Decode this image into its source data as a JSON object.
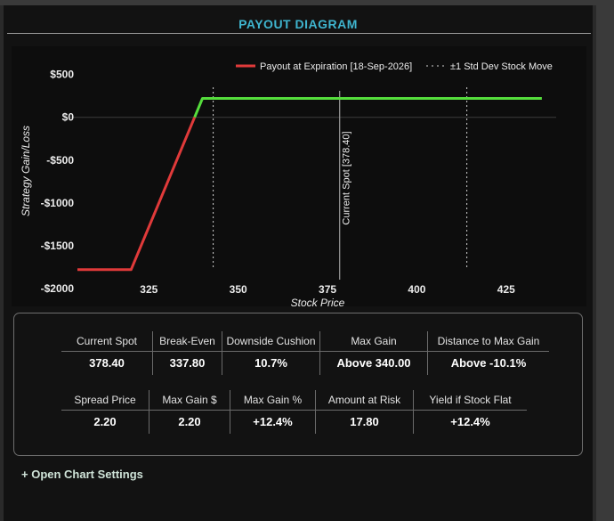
{
  "panel": {
    "title": "PAYOUT DIAGRAM"
  },
  "chart_data": {
    "type": "line",
    "xlabel": "Stock Price",
    "ylabel": "Strategy Gain/Loss",
    "xlim": [
      303,
      439
    ],
    "ylim": [
      -2000,
      600
    ],
    "x_ticks": [
      325,
      350,
      375,
      400,
      425
    ],
    "y_ticks": [
      500,
      0,
      -500,
      -1000,
      -1500,
      -2000
    ],
    "y_tick_labels": [
      "$500",
      "$0",
      "-$500",
      "-$1000",
      "-$1500",
      "-$2000"
    ],
    "series": [
      {
        "name": "Payout at Expiration [18-Sep-2026]",
        "x": [
          305,
          320,
          337.8,
          340,
          435
        ],
        "y": [
          -1780,
          -1780,
          0,
          220,
          220
        ],
        "loss_color": "#e03a3a",
        "gain_color": "#55dd3c"
      }
    ],
    "std_dev_legend": "±1 Std Dev Stock Move",
    "std_dev_lines": [
      343,
      414
    ],
    "spot": {
      "x": 378.4,
      "label": "Current Spot [378.40]"
    },
    "grid": false,
    "legend_position": "top-right"
  },
  "stats": {
    "row1": [
      {
        "label": "Current Spot",
        "value": "378.40"
      },
      {
        "label": "Break-Even",
        "value": "337.80"
      },
      {
        "label": "Downside Cushion",
        "value": "10.7%"
      },
      {
        "label": "Max Gain",
        "value": "Above 340.00"
      },
      {
        "label": "Distance to Max Gain",
        "value": "Above -10.1%"
      }
    ],
    "row2": [
      {
        "label": "Spread Price",
        "value": "2.20"
      },
      {
        "label": "Max Gain $",
        "value": "2.20"
      },
      {
        "label": "Max Gain %",
        "value": "+12.4%"
      },
      {
        "label": "Amount at Risk",
        "value": "17.80"
      },
      {
        "label": "Yield if Stock Flat",
        "value": "+12.4%"
      }
    ]
  },
  "settings_link": "+ Open Chart Settings"
}
